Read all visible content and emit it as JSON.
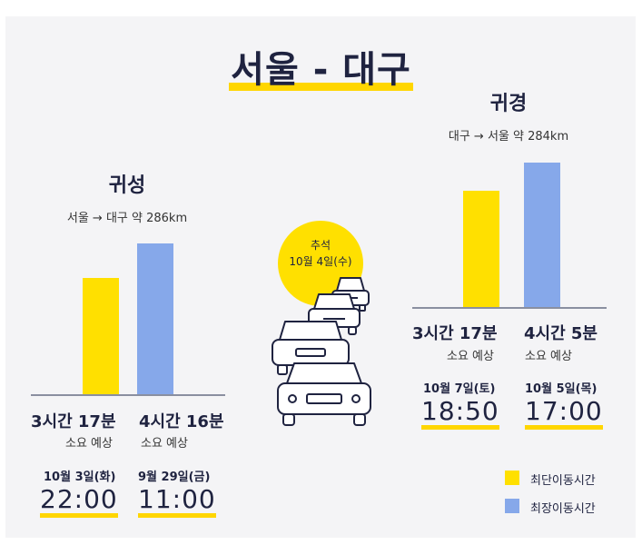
{
  "title": "서울 - 대구",
  "colors": {
    "shortest": "#ffe000",
    "longest": "#86a8ea",
    "background": "#f4f4f6",
    "text": "#1f2340"
  },
  "holiday": {
    "name": "추석",
    "date": "10월 4일(수)"
  },
  "outbound": {
    "title": "귀성",
    "route": "서울 → 대구 약 286km",
    "shortest": {
      "duration": "3시간 17분",
      "label": "소요 예상",
      "date": "10월 3일(화)",
      "time": "22:00",
      "minutes": 197
    },
    "longest": {
      "duration": "4시간 16분",
      "label": "소요 예상",
      "date": "9월 29일(금)",
      "time": "11:00",
      "minutes": 256
    }
  },
  "return": {
    "title": "귀경",
    "route": "대구 → 서울 약 284km",
    "shortest": {
      "duration": "3시간 17분",
      "label": "소요 예상",
      "date": "10월 7일(토)",
      "time": "18:50",
      "minutes": 197
    },
    "longest": {
      "duration": "4시간 5분",
      "label": "소요 예상",
      "date": "10월 5일(목)",
      "time": "17:00",
      "minutes": 245
    }
  },
  "legend": [
    {
      "label": "최단이동시간",
      "color": "#ffe000"
    },
    {
      "label": "최장이동시간",
      "color": "#86a8ea"
    }
  ]
}
